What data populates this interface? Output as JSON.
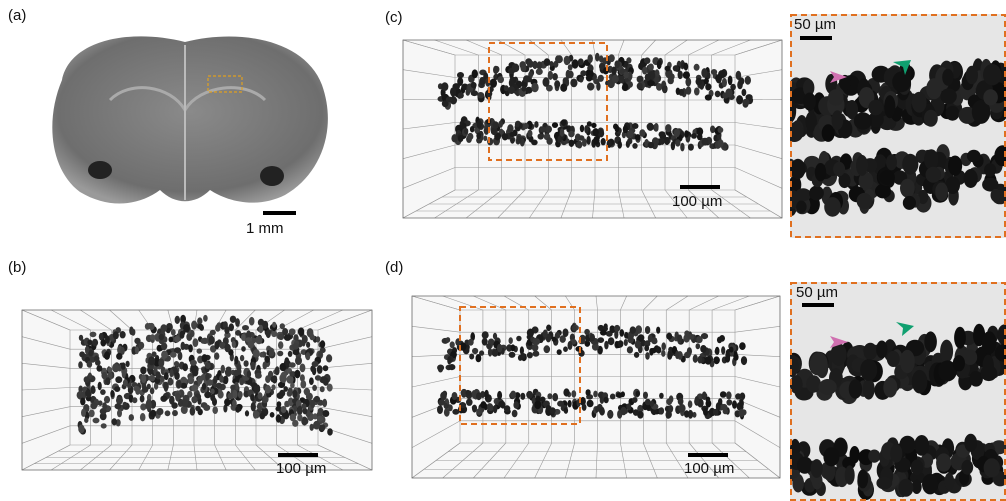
{
  "panels": [
    {
      "label": "(a)",
      "scale_bar": "1 mm"
    },
    {
      "label": "(b)",
      "scale_bar": "100 µm"
    },
    {
      "label": "(c)",
      "scale_bar": "100 µm",
      "inset_scale_bar": "50 µm"
    },
    {
      "label": "(d)",
      "scale_bar": "100 µm",
      "inset_scale_bar": "50 µm"
    }
  ]
}
